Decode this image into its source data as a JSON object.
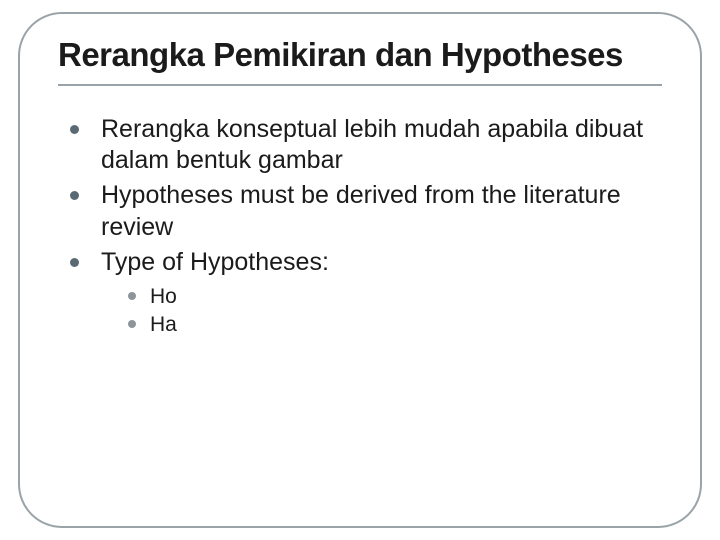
{
  "slide": {
    "title": "Rerangka Pemikiran dan Hypotheses",
    "title_fontsize": 33,
    "title_color": "#1b1b1b",
    "border_color": "#9aa3a8",
    "border_radius": 44,
    "background_color": "#ffffff",
    "rule_color": "#9aa3a8",
    "bullets": [
      {
        "text": "Rerangka konseptual lebih mudah apabila dibuat dalam bentuk gambar"
      },
      {
        "text": "Hypotheses must be derived from the literature review"
      },
      {
        "text": "Type of Hypotheses:"
      }
    ],
    "bullet_fontsize": 25,
    "bullet_color": "#5b6a72",
    "bullet_text_color": "#1b1b1b",
    "sub_bullets": [
      {
        "text": "Ho"
      },
      {
        "text": "Ha"
      }
    ],
    "sub_bullet_fontsize": 21,
    "sub_bullet_color": "#8d959a"
  }
}
